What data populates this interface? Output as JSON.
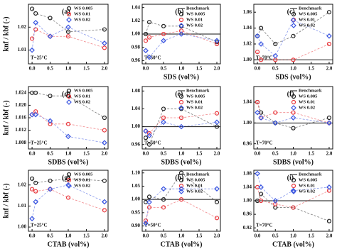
{
  "chart_data": [
    {
      "type": "scatter",
      "panel": "(a)",
      "annotation": "T=25°C",
      "ylabel": "knf / kbf (-)",
      "xlabel": null,
      "x": [
        0,
        0.1,
        0.5,
        1,
        2
      ],
      "xlim": [
        -0.1,
        2.1
      ],
      "xticks": [
        {
          "value": 0,
          "label": "0.0"
        },
        0.5,
        {
          "value": 1,
          "label": "1.0"
        },
        1.5,
        {
          "value": 2,
          "label": "2.0"
        }
      ],
      "ylim": [
        1.004,
        1.03
      ],
      "yticks": [
        1.01,
        1.02
      ],
      "series": [
        {
          "name": "WS 0.005",
          "color": "#222222",
          "marker": "circle",
          "values": [
            1.028,
            1.026,
            1.024,
            1.018,
            1.019
          ]
        },
        {
          "name": "WS 0.01",
          "color": "#e8383d",
          "marker": "circle",
          "values": [
            1.015,
            1.019,
            1.016,
            1.016,
            1.011
          ]
        },
        {
          "name": "WS 0.02",
          "color": "#3a55e0",
          "marker": "diamond",
          "values": [
            1.01,
            1.022,
            1.016,
            1.02,
            1.013
          ]
        }
      ]
    },
    {
      "type": "scatter",
      "panel": "(b)",
      "annotation": "T=50°C",
      "xlabel": "SDS (vol%)",
      "x": [
        0,
        0.1,
        0.5,
        1,
        2
      ],
      "xlim": [
        -0.1,
        2.1
      ],
      "xticks": [
        {
          "value": 0,
          "label": "0.0"
        },
        0.5,
        {
          "value": 1,
          "label": "1.0"
        },
        1.5,
        {
          "value": 2,
          "label": "2.0"
        }
      ],
      "ylim": [
        0.955,
        1.045
      ],
      "yticks": [
        0.96,
        0.98,
        {
          "value": 1,
          "label": "1.00"
        },
        1.02,
        1.04
      ],
      "benchmark": {
        "name": "Benchmark",
        "value": 1
      },
      "series": [
        {
          "name": "WS 0.005",
          "color": "#222222",
          "marker": "circle",
          "values": [
            1.0,
            1.018,
            1.012,
            1.012,
            0.988
          ]
        },
        {
          "name": "WS 0.01",
          "color": "#e8383d",
          "marker": "circle",
          "values": [
            0.99,
            0.995,
            1.0,
            1.005,
            0.985
          ]
        },
        {
          "name": "WS 0.02",
          "color": "#3a55e0",
          "marker": "diamond",
          "values": [
            0.975,
            0.965,
            0.99,
            1.0,
            0.99
          ]
        }
      ]
    },
    {
      "type": "scatter",
      "panel": "(c)",
      "annotation": "T=70°C",
      "xlabel": "SDS (vol%)",
      "x": [
        0,
        0.1,
        0.5,
        1,
        2
      ],
      "xlim": [
        -0.1,
        2.1
      ],
      "xticks": [
        {
          "value": 0,
          "label": "0.0"
        },
        0.5,
        {
          "value": 1,
          "label": "1.0"
        },
        1.5,
        {
          "value": 2,
          "label": "2.0"
        }
      ],
      "ylim": [
        0.995,
        1.07
      ],
      "yticks": [
        {
          "value": 1,
          "label": "1.00"
        },
        1.02,
        1.04,
        1.06
      ],
      "benchmark": {
        "name": "Benchmark",
        "value": 1
      },
      "series": [
        {
          "name": "WS 0.005",
          "color": "#222222",
          "marker": "circle",
          "values": [
            1.03,
            1.04,
            1.02,
            1.03,
            1.06
          ]
        },
        {
          "name": "WS 0.01",
          "color": "#e8383d",
          "marker": "circle",
          "values": [
            1.01,
            1.0,
            1.0,
            1.0,
            1.02
          ]
        },
        {
          "name": "WS 0.02",
          "color": "#3a55e0",
          "marker": "diamond",
          "values": [
            1.03,
            1.02,
            1.005,
            1.05,
            1.03
          ]
        }
      ]
    },
    {
      "type": "scatter",
      "panel": "(d)",
      "annotation": "T=25°C",
      "ylabel": "knf / kbf (-)",
      "xlabel": "SDBS (vol%)",
      "x": [
        0,
        0.1,
        0.5,
        1,
        2
      ],
      "xlim": [
        -0.1,
        2.1
      ],
      "xticks": [
        {
          "value": 0,
          "label": "0.0"
        },
        0.5,
        {
          "value": 1,
          "label": "1.0"
        },
        1.5,
        {
          "value": 2,
          "label": "2.0"
        }
      ],
      "ylim": [
        1.006,
        1.026
      ],
      "yticks": [
        1.008,
        1.012,
        1.016,
        {
          "value": 1.02,
          "label": "1.020"
        },
        1.024
      ],
      "series": [
        {
          "name": "WS 0.005",
          "color": "#222222",
          "marker": "circle",
          "values": [
            1.024,
            1.024,
            1.023,
            1.023,
            1.016
          ]
        },
        {
          "name": "WS 0.01",
          "color": "#e8383d",
          "marker": "circle",
          "values": [
            1.017,
            1.018,
            1.014,
            1.014,
            1.012
          ]
        },
        {
          "name": "WS 0.02",
          "color": "#3a55e0",
          "marker": "diamond",
          "values": [
            1.017,
            1.017,
            1.015,
            1.01,
            1.008
          ]
        }
      ]
    },
    {
      "type": "scatter",
      "panel": "(e)",
      "annotation": "T=50°C",
      "xlabel": "SDBS (vol%)",
      "x": [
        0,
        0.1,
        0.5,
        1,
        2
      ],
      "xlim": [
        -0.1,
        2.1
      ],
      "xticks": [
        {
          "value": 0,
          "label": "0.0"
        },
        0.5,
        {
          "value": 1,
          "label": "1.0"
        },
        1.5,
        {
          "value": 2,
          "label": "2.0"
        }
      ],
      "ylim": [
        0.95,
        1.09
      ],
      "yticks": [
        0.96,
        {
          "value": 1,
          "label": "1.00"
        },
        1.04,
        1.08
      ],
      "benchmark": {
        "name": "Benchmark",
        "value": 1
      },
      "series": [
        {
          "name": "WS 0.005",
          "color": "#222222",
          "marker": "circle",
          "values": [
            0.975,
            0.96,
            1.04,
            1.04,
            1.0
          ]
        },
        {
          "name": "WS 0.01",
          "color": "#e8383d",
          "marker": "circle",
          "values": [
            0.99,
            0.985,
            1.02,
            1.02,
            1.03
          ]
        },
        {
          "name": "WS 0.02",
          "color": "#3a55e0",
          "marker": "diamond",
          "values": [
            0.99,
            0.98,
            1.01,
            1.0,
            1.01
          ]
        }
      ]
    },
    {
      "type": "scatter",
      "panel": "(f)",
      "annotation": "T=70°C",
      "xlabel": "SDBS (vol%)",
      "x": [
        0,
        0.1,
        0.5,
        1,
        2
      ],
      "xlim": [
        -0.1,
        2.1
      ],
      "xticks": [
        {
          "value": 0,
          "label": "0.0"
        },
        0.5,
        {
          "value": 1,
          "label": "1.0"
        },
        1.5,
        {
          "value": 2,
          "label": "2.0"
        }
      ],
      "ylim": [
        0.95,
        1.07
      ],
      "yticks": [
        0.96,
        {
          "value": 1,
          "label": "1.00"
        },
        1.04
      ],
      "benchmark": {
        "name": "Benchmark",
        "value": 1
      },
      "series": [
        {
          "name": "WS 0.005",
          "color": "#222222",
          "marker": "circle",
          "values": [
            1.04,
            1.02,
            1.0,
            0.99,
            1.01
          ]
        },
        {
          "name": "WS 0.01",
          "color": "#e8383d",
          "marker": "circle",
          "values": [
            1.04,
            1.01,
            1.02,
            1.02,
            1.0
          ]
        },
        {
          "name": "WS 0.02",
          "color": "#3a55e0",
          "marker": "diamond",
          "values": [
            1.02,
            1.01,
            1.0,
            1.01,
            1.0
          ]
        }
      ]
    },
    {
      "type": "scatter",
      "panel": "(g)",
      "annotation": "T=25°C",
      "ylabel": "knf / kbf (-)",
      "xlabel": "CTAB (vol%)",
      "x": [
        0,
        0.1,
        0.5,
        1,
        2
      ],
      "xlim": [
        -0.1,
        2.1
      ],
      "xticks": [
        {
          "value": 0,
          "label": "0.0"
        },
        0.5,
        {
          "value": 1,
          "label": "1.0"
        },
        1.5,
        {
          "value": 2,
          "label": "2.0"
        }
      ],
      "ylim": [
        0.998,
        1.027
      ],
      "yticks": [
        {
          "value": 1,
          "label": "1.00"
        },
        1.01,
        1.02
      ],
      "series": [
        {
          "name": "WS 0.005",
          "color": "#222222",
          "marker": "circle",
          "values": [
            1.023,
            1.021,
            1.022,
            1.023,
            1.022
          ]
        },
        {
          "name": "WS 0.01",
          "color": "#e8383d",
          "marker": "circle",
          "values": [
            1.018,
            1.017,
            1.018,
            1.014,
            1.008
          ]
        },
        {
          "name": "WS 0.02",
          "color": "#3a55e0",
          "marker": "diamond",
          "values": [
            1.004,
            1.012,
            1.018,
            1.02,
            1.012
          ]
        }
      ]
    },
    {
      "type": "scatter",
      "panel": "(h)",
      "annotation": "T=50°C",
      "xlabel": "CTAB (vol%)",
      "x": [
        0,
        0.1,
        0.5,
        1,
        2
      ],
      "xlim": [
        -0.1,
        2.1
      ],
      "xticks": [
        {
          "value": 0,
          "label": "0.0"
        },
        0.5,
        {
          "value": 1,
          "label": "1.0"
        },
        1.5,
        {
          "value": 2,
          "label": "2.0"
        }
      ],
      "ylim": [
        0.88,
        1.11
      ],
      "yticks": [
        {
          "value": 0.9,
          "label": "0.90"
        },
        0.95,
        {
          "value": 1,
          "label": "1.00"
        },
        1.05,
        {
          "value": 1.1,
          "label": "1.10"
        }
      ],
      "benchmark": {
        "name": "Benchmark",
        "value": 1
      },
      "series": [
        {
          "name": "WS 0.005",
          "color": "#222222",
          "marker": "circle",
          "values": [
            0.99,
            1.01,
            1.0,
            1.1,
            0.99
          ]
        },
        {
          "name": "WS 0.01",
          "color": "#e8383d",
          "marker": "circle",
          "values": [
            0.92,
            0.97,
            0.97,
            1.0,
            0.93
          ]
        },
        {
          "name": "WS 0.02",
          "color": "#3a55e0",
          "marker": "diamond",
          "values": [
            0.91,
            0.99,
            1.04,
            1.04,
            1.04
          ]
        }
      ]
    },
    {
      "type": "scatter",
      "panel": "(i)",
      "annotation": "T=70°C",
      "xlabel": "CTAB (vol%)",
      "x": [
        0,
        0.1,
        0.5,
        1,
        2
      ],
      "xlim": [
        -0.1,
        2.1
      ],
      "xticks": [
        {
          "value": 0,
          "label": "0.0"
        },
        0.5,
        {
          "value": 1,
          "label": "1.0"
        },
        1.5,
        {
          "value": 2,
          "label": "2.0"
        }
      ],
      "ylim": [
        0.91,
        1.09
      ],
      "yticks": [
        0.92,
        0.96,
        {
          "value": 1,
          "label": "1.00"
        },
        1.04,
        1.08
      ],
      "benchmark": {
        "name": "Benchmark",
        "value": 1
      },
      "series": [
        {
          "name": "WS 0.005",
          "color": "#222222",
          "marker": "circle",
          "values": [
            1.0,
            1.02,
            0.98,
            0.98,
            0.94
          ]
        },
        {
          "name": "WS 0.01",
          "color": "#e8383d",
          "marker": "circle",
          "values": [
            1.04,
            1.0,
            0.99,
            0.98,
            1.03
          ]
        },
        {
          "name": "WS 0.02",
          "color": "#3a55e0",
          "marker": "diamond",
          "values": [
            1.08,
            1.04,
            1.0,
            1.03,
            1.04
          ]
        }
      ]
    }
  ]
}
